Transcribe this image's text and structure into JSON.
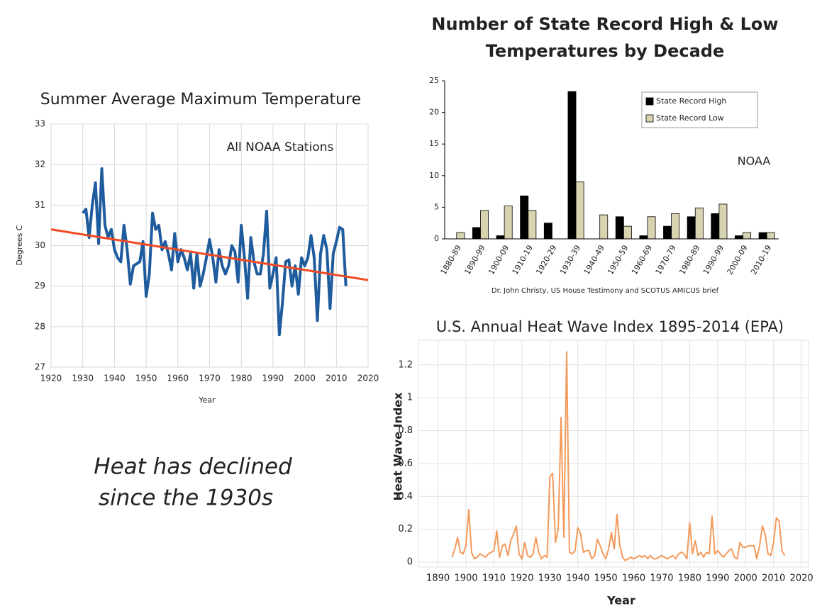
{
  "chart_data": [
    {
      "type": "line",
      "title": "Summer Average Maximum Temperature",
      "annotation": "All NOAA Stations",
      "xlabel": "Year",
      "ylabel": "Degrees C",
      "xlim": [
        1920,
        2020
      ],
      "ylim": [
        27,
        33
      ],
      "xticks": [
        1920,
        1930,
        1940,
        1950,
        1960,
        1970,
        1980,
        1990,
        2000,
        2010,
        2020
      ],
      "yticks": [
        27,
        28,
        29,
        30,
        31,
        32,
        33
      ],
      "grid": true,
      "series": [
        {
          "color": "#1f5c9e",
          "x": [
            1930,
            1931,
            1932,
            1933,
            1934,
            1935,
            1936,
            1937,
            1938,
            1939,
            1940,
            1941,
            1942,
            1943,
            1944,
            1945,
            1946,
            1947,
            1948,
            1949,
            1950,
            1951,
            1952,
            1953,
            1954,
            1955,
            1956,
            1957,
            1958,
            1959,
            1960,
            1961,
            1962,
            1963,
            1964,
            1965,
            1966,
            1967,
            1968,
            1969,
            1970,
            1971,
            1972,
            1973,
            1974,
            1975,
            1976,
            1977,
            1978,
            1979,
            1980,
            1981,
            1982,
            1983,
            1984,
            1985,
            1986,
            1987,
            1988,
            1989,
            1990,
            1991,
            1992,
            1993,
            1994,
            1995,
            1996,
            1997,
            1998,
            1999,
            2000,
            2001,
            2002,
            2003,
            2004,
            2005,
            2006,
            2007,
            2008,
            2009,
            2010,
            2011,
            2012,
            2013
          ],
          "values": [
            30.8,
            30.9,
            30.2,
            31.0,
            31.55,
            30.05,
            31.9,
            30.5,
            30.2,
            30.4,
            29.9,
            29.7,
            29.6,
            30.5,
            29.9,
            29.05,
            29.5,
            29.55,
            29.6,
            30.1,
            28.75,
            29.3,
            30.8,
            30.4,
            30.5,
            29.9,
            30.1,
            29.8,
            29.4,
            30.3,
            29.6,
            29.9,
            29.7,
            29.4,
            29.8,
            28.95,
            29.8,
            29.0,
            29.3,
            29.7,
            30.15,
            29.7,
            29.1,
            29.9,
            29.5,
            29.3,
            29.5,
            30.0,
            29.85,
            29.1,
            30.5,
            29.7,
            28.7,
            30.2,
            29.6,
            29.3,
            29.3,
            29.8,
            30.85,
            28.95,
            29.3,
            29.7,
            27.8,
            28.6,
            29.6,
            29.65,
            29.0,
            29.5,
            28.8,
            29.7,
            29.5,
            29.7,
            30.25,
            29.7,
            28.15,
            29.8,
            30.25,
            29.9,
            28.45,
            29.8,
            30.1,
            30.45,
            30.4,
            29.0
          ]
        },
        {
          "color": "#f04a23",
          "x": [
            1920,
            2020
          ],
          "values": [
            30.4,
            29.15
          ]
        }
      ]
    },
    {
      "type": "bar",
      "title": [
        "Number of State Record High & Low",
        "Temperatures by Decade"
      ],
      "annotation": "NOAA",
      "credit": "Dr. John Christy, US House Testimony and SCOTUS AMICUS brief",
      "categories": [
        "1880-89",
        "1890-99",
        "1900-09",
        "1910-19",
        "1920-29",
        "1930-39",
        "1940-49",
        "1950-59",
        "1960-69",
        "1970-79",
        "1980-89",
        "1990-99",
        "2000-09",
        "2010-19"
      ],
      "ylim": [
        0,
        25
      ],
      "yticks": [
        0,
        5,
        10,
        15,
        20,
        25
      ],
      "legend": "top-right",
      "series": [
        {
          "name": "State Record High",
          "color": "#000000",
          "values": [
            0,
            1.8,
            0.5,
            6.8,
            2.5,
            23.3,
            0,
            3.5,
            0.5,
            2,
            3.5,
            4,
            0.5,
            1
          ]
        },
        {
          "name": "State Record Low",
          "color": "#d8d3b0",
          "values": [
            1,
            4.5,
            5.2,
            4.5,
            0,
            9,
            3.8,
            2,
            3.5,
            4,
            4.9,
            5.5,
            1,
            1
          ]
        }
      ]
    },
    {
      "type": "line",
      "title": "U.S. Annual Heat Wave Index 1895-2014 (EPA)",
      "xlabel": "Year",
      "ylabel": "Heat Wave Index",
      "xlim": [
        1883,
        2022.5
      ],
      "ylim": [
        -0.03,
        1.35
      ],
      "xticks": [
        1890,
        1900,
        1910,
        1920,
        1930,
        1940,
        1950,
        1960,
        1970,
        1980,
        1990,
        2000,
        2010,
        2020
      ],
      "yticks": [
        0,
        0.2,
        0.4,
        0.6,
        0.8,
        1.0,
        1.2
      ],
      "grid": true,
      "series": [
        {
          "color": "#f39a5b",
          "x": [
            1895,
            1896,
            1897,
            1898,
            1899,
            1900,
            1901,
            1902,
            1903,
            1904,
            1905,
            1906,
            1907,
            1908,
            1909,
            1910,
            1911,
            1912,
            1913,
            1914,
            1915,
            1916,
            1917,
            1918,
            1919,
            1920,
            1921,
            1922,
            1923,
            1924,
            1925,
            1926,
            1927,
            1928,
            1929,
            1930,
            1931,
            1932,
            1933,
            1934,
            1935,
            1936,
            1937,
            1938,
            1939,
            1940,
            1941,
            1942,
            1943,
            1944,
            1945,
            1946,
            1947,
            1948,
            1949,
            1950,
            1951,
            1952,
            1953,
            1954,
            1955,
            1956,
            1957,
            1958,
            1959,
            1960,
            1961,
            1962,
            1963,
            1964,
            1965,
            1966,
            1967,
            1968,
            1969,
            1970,
            1971,
            1972,
            1973,
            1974,
            1975,
            1976,
            1977,
            1978,
            1979,
            1980,
            1981,
            1982,
            1983,
            1984,
            1985,
            1986,
            1987,
            1988,
            1989,
            1990,
            1991,
            1992,
            1993,
            1994,
            1995,
            1996,
            1997,
            1998,
            1999,
            2000,
            2001,
            2002,
            2003,
            2004,
            2005,
            2006,
            2007,
            2008,
            2009,
            2010,
            2011,
            2012,
            2013,
            2014
          ],
          "values": [
            0.03,
            0.08,
            0.15,
            0.06,
            0.05,
            0.1,
            0.32,
            0.06,
            0.02,
            0.03,
            0.05,
            0.04,
            0.03,
            0.05,
            0.06,
            0.07,
            0.19,
            0.03,
            0.1,
            0.11,
            0.04,
            0.13,
            0.17,
            0.22,
            0.05,
            0.02,
            0.12,
            0.04,
            0.03,
            0.05,
            0.15,
            0.06,
            0.02,
            0.04,
            0.03,
            0.52,
            0.54,
            0.12,
            0.2,
            0.88,
            0.15,
            1.28,
            0.06,
            0.05,
            0.07,
            0.21,
            0.17,
            0.06,
            0.07,
            0.07,
            0.02,
            0.04,
            0.14,
            0.1,
            0.05,
            0.02,
            0.08,
            0.18,
            0.08,
            0.29,
            0.1,
            0.03,
            0.01,
            0.02,
            0.03,
            0.02,
            0.03,
            0.04,
            0.03,
            0.04,
            0.02,
            0.04,
            0.02,
            0.02,
            0.03,
            0.04,
            0.03,
            0.02,
            0.03,
            0.04,
            0.02,
            0.05,
            0.06,
            0.05,
            0.02,
            0.24,
            0.05,
            0.13,
            0.04,
            0.06,
            0.03,
            0.06,
            0.05,
            0.28,
            0.05,
            0.07,
            0.05,
            0.03,
            0.05,
            0.07,
            0.08,
            0.03,
            0.02,
            0.12,
            0.09,
            0.09,
            0.1,
            0.1,
            0.1,
            0.02,
            0.1,
            0.22,
            0.17,
            0.05,
            0.04,
            0.12,
            0.27,
            0.25,
            0.07,
            0.04
          ]
        }
      ]
    }
  ],
  "caption": [
    "Heat has declined",
    "since the 1930s"
  ]
}
